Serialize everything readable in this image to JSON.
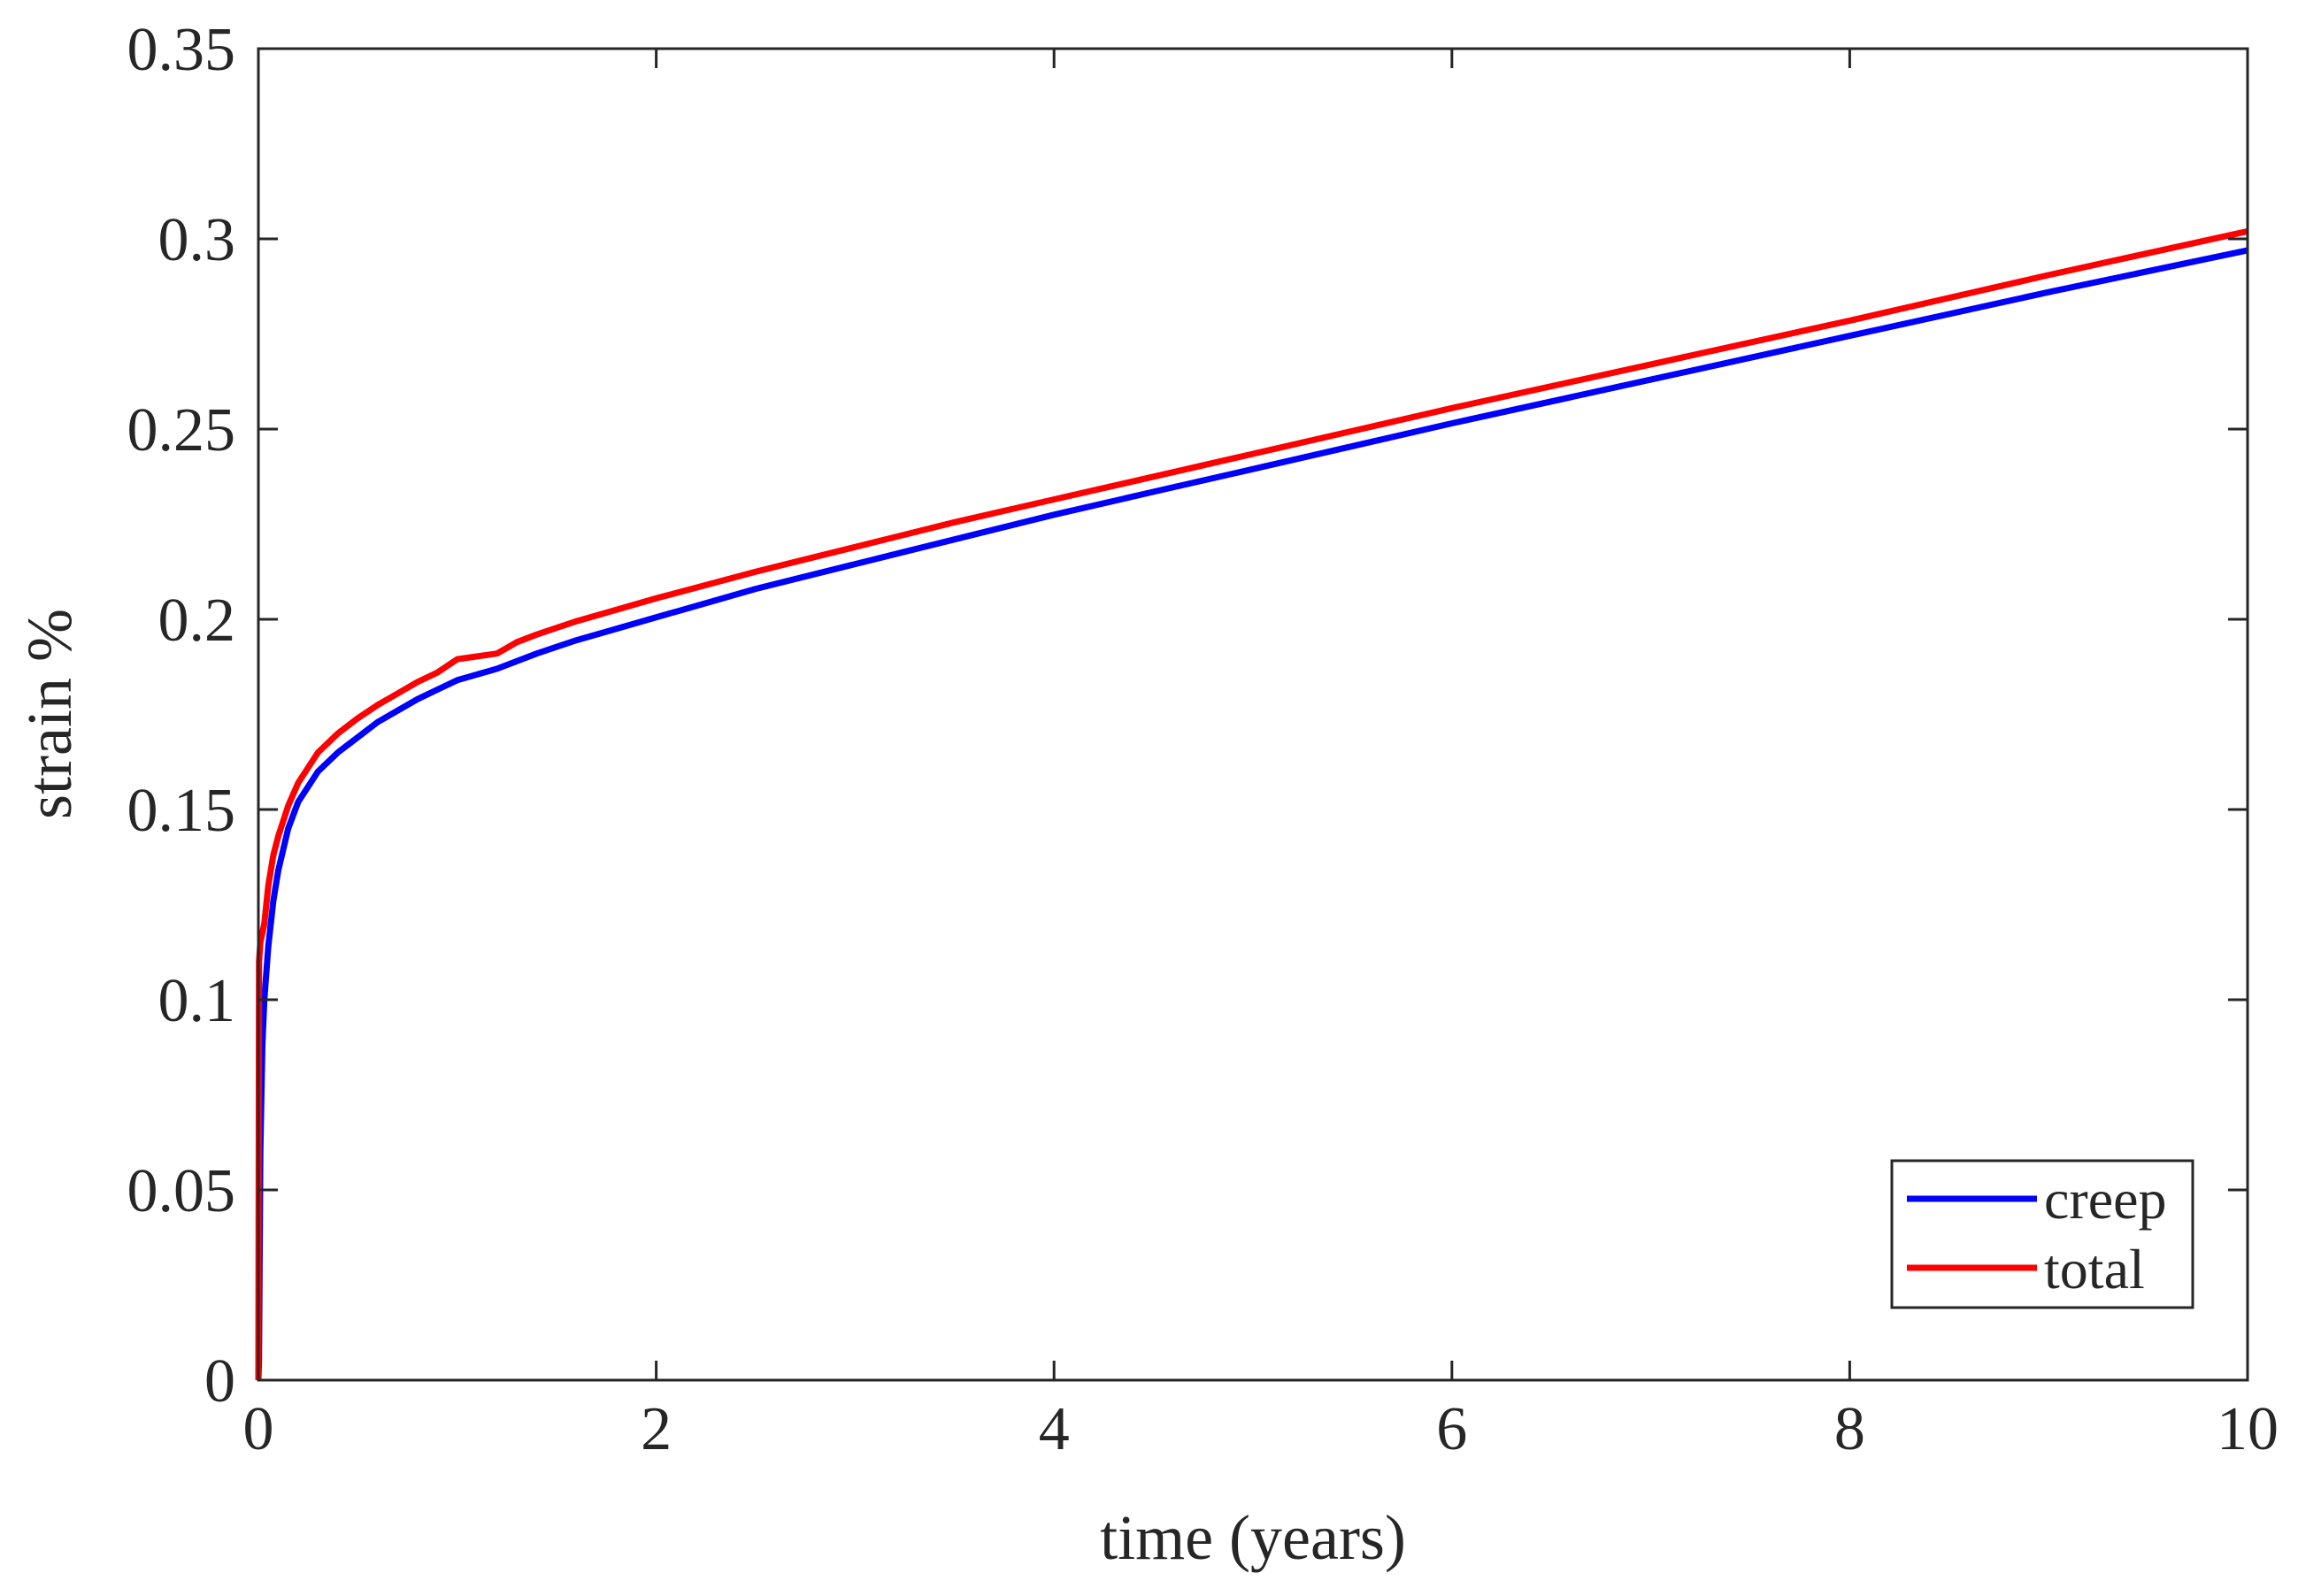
{
  "chart_data": {
    "type": "line",
    "xlabel": "time (years)",
    "ylabel": "strain %",
    "xlim": [
      0,
      10
    ],
    "ylim": [
      0,
      0.35
    ],
    "xticks": [
      0,
      2,
      4,
      6,
      8,
      10
    ],
    "xtick_labels": [
      "0",
      "2",
      "4",
      "6",
      "8",
      "10"
    ],
    "yticks": [
      0,
      0.05,
      0.1,
      0.15,
      0.2,
      0.25,
      0.3,
      0.35
    ],
    "ytick_labels": [
      "0",
      "0.05",
      "0.1",
      "0.15",
      "0.2",
      "0.25",
      "0.3",
      "0.35"
    ],
    "grid": false,
    "legend_position": "bottom-right",
    "series": [
      {
        "name": "creep",
        "color": "#0000ff",
        "x": [
          0,
          0.003,
          0.01,
          0.02,
          0.03,
          0.05,
          0.075,
          0.1,
          0.15,
          0.2,
          0.3,
          0.4,
          0.5,
          0.6,
          0.7,
          0.8,
          0.9,
          1.0,
          1.2,
          1.4,
          1.6,
          1.8,
          2.0,
          2.5,
          3.0,
          3.5,
          4.0,
          4.5,
          5.0,
          6.0,
          7.0,
          8.0,
          9.0,
          10.0
        ],
        "y": [
          0,
          0.005,
          0.06,
          0.088,
          0.1,
          0.114,
          0.126,
          0.134,
          0.145,
          0.152,
          0.16,
          0.165,
          0.169,
          0.173,
          0.176,
          0.179,
          0.1815,
          0.184,
          0.187,
          0.191,
          0.1945,
          0.1975,
          0.2005,
          0.208,
          0.2145,
          0.221,
          0.2275,
          0.2335,
          0.2395,
          0.2515,
          0.263,
          0.2745,
          0.286,
          0.297
        ]
      },
      {
        "name": "total",
        "color": "#ff0000",
        "x": [
          0,
          0.003,
          0.01,
          0.03,
          0.05,
          0.075,
          0.1,
          0.15,
          0.2,
          0.3,
          0.4,
          0.5,
          0.6,
          0.7,
          0.8,
          0.9,
          1.0,
          1.2,
          1.3,
          1.4,
          1.6,
          1.8,
          2.0,
          2.5,
          3.0,
          3.5,
          4.0,
          4.5,
          5.0,
          6.0,
          7.0,
          8.0,
          9.0,
          10.0
        ],
        "y": [
          0,
          0.11,
          0.115,
          0.12,
          0.13,
          0.138,
          0.143,
          0.151,
          0.157,
          0.165,
          0.17,
          0.174,
          0.1775,
          0.1805,
          0.1835,
          0.186,
          0.1895,
          0.191,
          0.194,
          0.196,
          0.1995,
          0.2025,
          0.2055,
          0.2125,
          0.219,
          0.2255,
          0.2315,
          0.2375,
          0.2435,
          0.2555,
          0.267,
          0.2785,
          0.2905,
          0.302
        ]
      }
    ]
  }
}
